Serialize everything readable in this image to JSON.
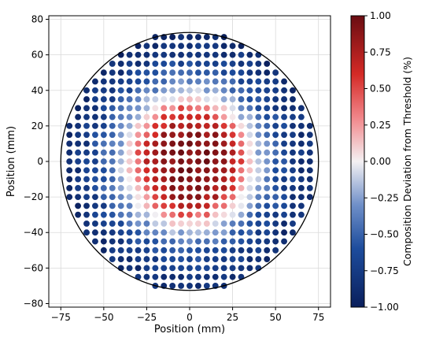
{
  "chart_data": {
    "type": "scatter",
    "title": "",
    "xlabel": "Position (mm)",
    "ylabel": "Position (mm)",
    "xlim": [
      -82,
      82
    ],
    "ylim": [
      -82,
      82
    ],
    "x_ticks": [
      -75,
      -50,
      -25,
      0,
      25,
      50,
      75
    ],
    "y_ticks": [
      -80,
      -60,
      -40,
      -20,
      0,
      20,
      40,
      60,
      80
    ],
    "x_tick_labels": [
      "−75",
      "−50",
      "−25",
      "0",
      "25",
      "50",
      "75"
    ],
    "y_tick_labels": [
      "−80",
      "−60",
      "−40",
      "−20",
      "0",
      "20",
      "40",
      "60",
      "80"
    ],
    "grid": true,
    "boundary_circle": {
      "center": [
        0,
        0
      ],
      "radius": 75,
      "color": "#000000"
    },
    "point_grid": {
      "spacing_mm": 5,
      "x_start": -70,
      "x_end": 70,
      "y_start": -70,
      "y_end": 70,
      "include_radius_mm": 73,
      "color_value_range": [
        -1,
        1
      ],
      "radial_profile": [
        {
          "r": 0,
          "value": 0.97
        },
        {
          "r": 12,
          "value": 0.92
        },
        {
          "r": 20,
          "value": 0.82
        },
        {
          "r": 26,
          "value": 0.66
        },
        {
          "r": 31,
          "value": 0.4
        },
        {
          "r": 35,
          "value": 0.12
        },
        {
          "r": 39,
          "value": -0.12
        },
        {
          "r": 44,
          "value": -0.32
        },
        {
          "r": 50,
          "value": -0.52
        },
        {
          "r": 58,
          "value": -0.7
        },
        {
          "r": 66,
          "value": -0.82
        },
        {
          "r": 73,
          "value": -0.9
        }
      ]
    },
    "colorbar": {
      "label": "Composition Deviation from Threshold (%)",
      "range": [
        -1,
        1
      ],
      "ticks": [
        1.0,
        0.75,
        0.5,
        0.25,
        0.0,
        -0.25,
        -0.5,
        -0.75,
        -1.0
      ],
      "tick_labels": [
        "1.00",
        "0.75",
        "0.50",
        "0.25",
        "0.00",
        "−0.25",
        "−0.50",
        "−0.75",
        "−1.00"
      ],
      "colormap": "seismic",
      "color_stops": [
        {
          "value": -1.0,
          "color": "#0a1f5c"
        },
        {
          "value": -0.6,
          "color": "#1d4c9c"
        },
        {
          "value": -0.3,
          "color": "#6f8fc8"
        },
        {
          "value": 0.0,
          "color": "#f4f1f3"
        },
        {
          "value": 0.3,
          "color": "#f1868a"
        },
        {
          "value": 0.6,
          "color": "#d42a26"
        },
        {
          "value": 1.0,
          "color": "#6a0d12"
        }
      ]
    }
  }
}
